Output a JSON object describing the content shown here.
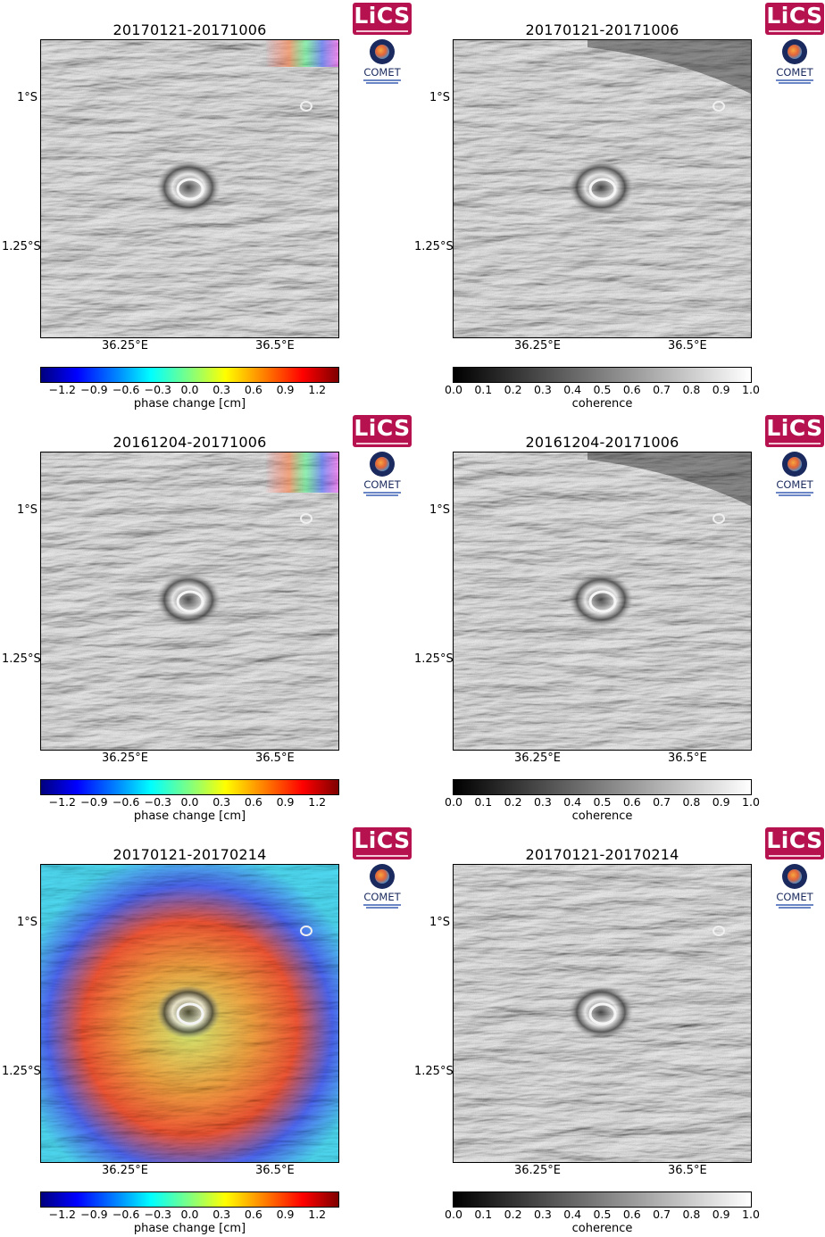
{
  "panels": [
    {
      "id": "p1",
      "title": "20170121-20171006",
      "kind": "phase"
    },
    {
      "id": "p2",
      "title": "20170121-20171006",
      "kind": "coherence"
    },
    {
      "id": "p3",
      "title": "20161204-20171006",
      "kind": "phase"
    },
    {
      "id": "p4",
      "title": "20161204-20171006",
      "kind": "coherence"
    },
    {
      "id": "p5",
      "title": "20170121-20170214",
      "kind": "phase"
    },
    {
      "id": "p6",
      "title": "20170121-20170214",
      "kind": "coherence"
    }
  ],
  "axes": {
    "y_ticks": [
      "1°S",
      "1.25°S"
    ],
    "x_ticks": [
      "36.25°E",
      "36.5°E"
    ]
  },
  "phase_colorbar": {
    "ticks": [
      "−1.2",
      "−0.9",
      "−0.6",
      "−0.3",
      "0.0",
      "0.3",
      "0.6",
      "0.9",
      "1.2"
    ],
    "label": "phase change [cm]",
    "range": [
      -1.4,
      1.4
    ]
  },
  "coherence_colorbar": {
    "ticks": [
      "0.0",
      "0.1",
      "0.2",
      "0.3",
      "0.4",
      "0.5",
      "0.6",
      "0.7",
      "0.8",
      "0.9",
      "1.0"
    ],
    "label": "coherence",
    "range": [
      0,
      1
    ]
  },
  "logos": {
    "lics": "LiCS",
    "comet": "COMET"
  },
  "colors": {
    "lics_brand": "#b5124f",
    "comet_brand": "#1a2a5e"
  }
}
